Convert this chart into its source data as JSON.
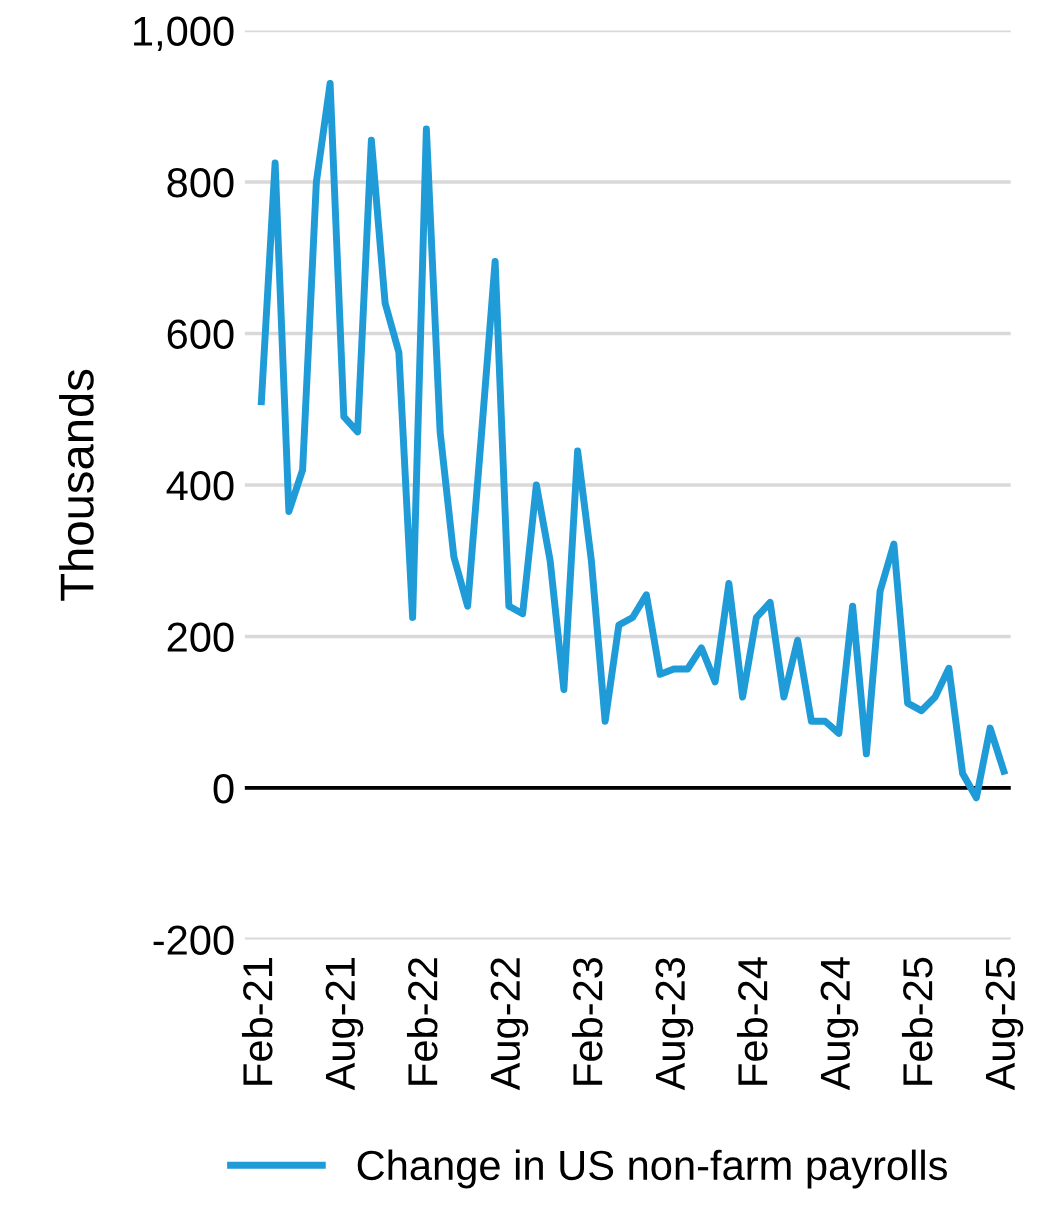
{
  "chart_data": {
    "type": "line",
    "ylabel": "Thousands",
    "categories": [
      "Feb-21",
      null,
      null,
      null,
      null,
      null,
      "Aug-21",
      null,
      null,
      null,
      null,
      null,
      "Feb-22",
      null,
      null,
      null,
      null,
      null,
      "Aug-22",
      null,
      null,
      null,
      null,
      null,
      "Feb-23",
      null,
      null,
      null,
      null,
      null,
      "Aug-23",
      null,
      null,
      null,
      null,
      null,
      "Feb-24",
      null,
      null,
      null,
      null,
      null,
      "Aug-24",
      null,
      null,
      null,
      null,
      null,
      "Feb-25",
      null,
      null,
      null,
      null,
      null,
      "Aug-25"
    ],
    "series": [
      {
        "name": "Change in US non-farm payrolls",
        "color": "#1f9bd7",
        "values": [
          510,
          825,
          365,
          420,
          800,
          930,
          490,
          470,
          855,
          640,
          575,
          225,
          870,
          470,
          305,
          240,
          465,
          695,
          240,
          230,
          400,
          300,
          130,
          445,
          300,
          88,
          215,
          225,
          255,
          150,
          157,
          157,
          185,
          140,
          270,
          120,
          225,
          245,
          120,
          195,
          88,
          88,
          72,
          240,
          45,
          260,
          322,
          112,
          102,
          120,
          158,
          19,
          -13,
          79,
          22
        ]
      }
    ],
    "ylim": [
      -200,
      1000
    ],
    "yticks": [
      {
        "value": -200,
        "label": "-200"
      },
      0,
      200,
      400,
      600,
      800,
      {
        "value": 1000,
        "label": "1,000"
      }
    ],
    "ref_lines": [
      {
        "axis": "y",
        "value": 0,
        "color": "#000000"
      }
    ],
    "grid": "y",
    "legend": "bottom",
    "line_style": "solid",
    "marker": "none"
  }
}
